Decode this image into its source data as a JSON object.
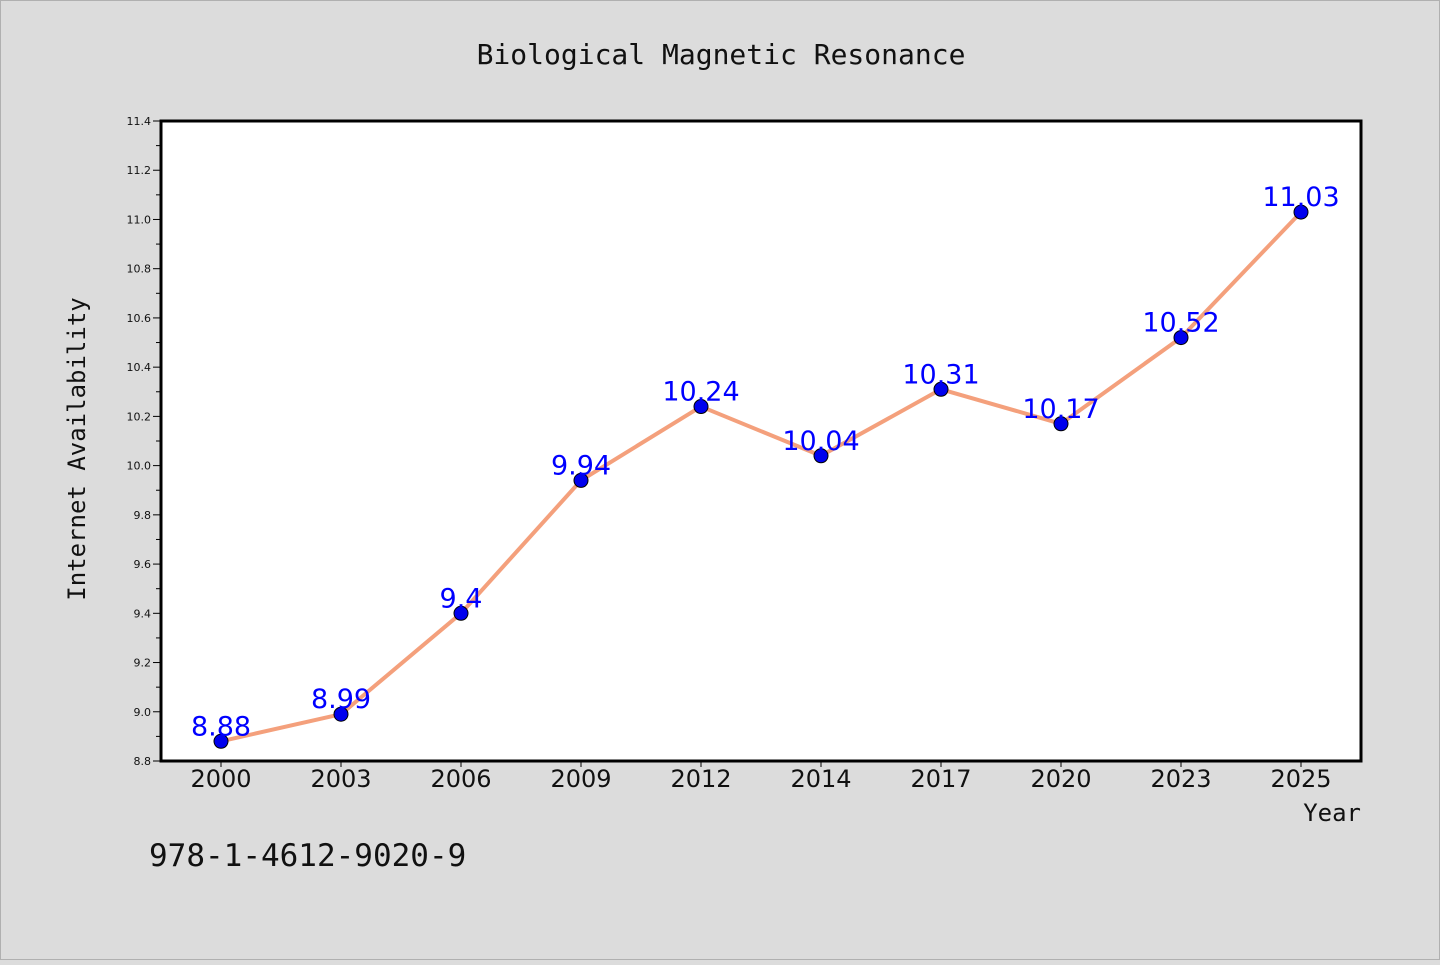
{
  "chart_data": {
    "type": "line",
    "title": "Biological Magnetic Resonance",
    "xlabel": "Year",
    "ylabel": "Internet Availability",
    "categories": [
      "2000",
      "2003",
      "2006",
      "2009",
      "2012",
      "2014",
      "2017",
      "2020",
      "2023",
      "2025"
    ],
    "values": [
      8.88,
      8.99,
      9.4,
      9.94,
      10.24,
      10.04,
      10.31,
      10.17,
      10.52,
      11.03
    ],
    "data_labels": [
      "8.88",
      "8.99",
      "9.4",
      "9.94",
      "10.24",
      "10.04",
      "10.31",
      "10.17",
      "10.52",
      "11.03"
    ],
    "ylim": [
      8.8,
      11.4
    ],
    "yticks": [
      "8.8",
      "9.0",
      "9.2",
      "9.4",
      "9.6",
      "9.8",
      "10.0",
      "10.2",
      "10.4",
      "10.6",
      "10.8",
      "11.0",
      "11.2",
      "11.4"
    ],
    "grid": false,
    "colors": {
      "line": "#f4a07c",
      "marker": "#0000ee",
      "label": "#0000ff",
      "background": "#dcdcdc",
      "plot": "#ffffff"
    }
  },
  "footer_text": "978-1-4612-9020-9"
}
